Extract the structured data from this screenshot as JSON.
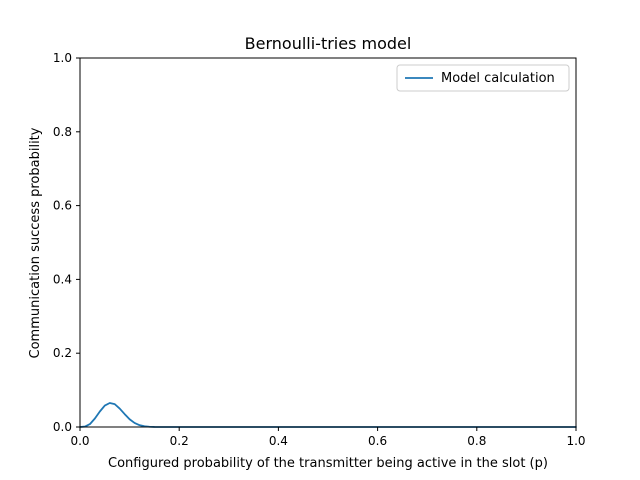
{
  "chart_data": {
    "type": "line",
    "title": "Bernoulli-tries model",
    "xlabel": "Configured probability of the transmitter being active in the slot (p)",
    "ylabel": "Communication success probability",
    "xlim": [
      0,
      1
    ],
    "ylim": [
      0,
      1
    ],
    "xticks": [
      "0.0",
      "0.2",
      "0.4",
      "0.6",
      "0.8",
      "1.0"
    ],
    "yticks": [
      "0.0",
      "0.2",
      "0.4",
      "0.6",
      "0.8",
      "1.0"
    ],
    "grid": false,
    "legend_position": "top-right",
    "series": [
      {
        "name": "Model calculation",
        "color": "#1f77b4",
        "x": [
          0.0,
          0.01,
          0.02,
          0.03,
          0.04,
          0.05,
          0.06,
          0.07,
          0.08,
          0.09,
          0.1,
          0.11,
          0.12,
          0.13,
          0.14,
          0.15,
          0.2,
          0.3,
          0.4,
          0.5,
          0.6,
          0.7,
          0.8,
          0.9,
          1.0
        ],
        "y": [
          0.0,
          0.0012,
          0.0078,
          0.023,
          0.042,
          0.058,
          0.065,
          0.062,
          0.05,
          0.035,
          0.021,
          0.011,
          0.005,
          0.002,
          0.0007,
          0.0002,
          0.0,
          0.0,
          0.0,
          0.0,
          0.0,
          0.0,
          0.0,
          0.0,
          0.0
        ]
      }
    ]
  }
}
